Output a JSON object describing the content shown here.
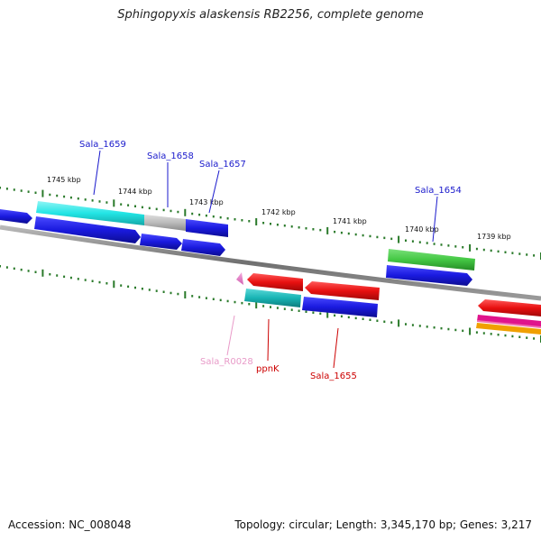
{
  "title": "Sphingopyxis alaskensis RB2256, complete genome",
  "footer": {
    "accession": "Accession: NC_008048",
    "summary": "Topology: circular; Length: 3,345,170 bp; Genes: 3,217"
  },
  "scale_labels": [
    "1745 kbp",
    "1744 kbp",
    "1743 kbp",
    "1742 kbp",
    "1741 kbp",
    "1740 kbp",
    "1739 kbp"
  ],
  "gene_labels": [
    "Sala_1659",
    "Sala_1658",
    "Sala_1657",
    "Sala_1654",
    "Sala_R0028",
    "ppnK",
    "Sala_1655"
  ],
  "colors": {
    "backbone": "#808080",
    "tick": "#2a7a2a",
    "cds": "#1a1adf",
    "cds_cyan": "#22e5e5",
    "cds_gray": "#bbbbbb",
    "cds_green": "#44c844",
    "rev_red": "#e81010",
    "rev_teal": "#18b4b4",
    "rev_pink": "#e070c0",
    "rev_magenta": "#e0148c",
    "rev_orange": "#f0a000",
    "label_blue": "#1a1acc",
    "label_red": "#cc0000",
    "label_pink": "#e89ac8"
  }
}
